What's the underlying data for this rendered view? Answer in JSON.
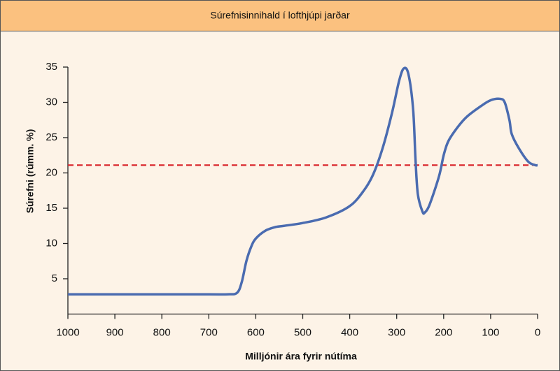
{
  "chart_data": {
    "type": "line",
    "title": "Súrefnisinnihald í lofthjúpi jarðar",
    "x_label": "Milljónir ára fyrir nútíma",
    "y_label": "Súrefni (rúmm. %)",
    "x": [
      1000,
      900,
      800,
      700,
      660,
      640,
      630,
      620,
      610,
      600,
      580,
      560,
      540,
      500,
      450,
      400,
      370,
      350,
      330,
      310,
      295,
      285,
      275,
      265,
      260,
      255,
      245,
      240,
      230,
      210,
      200,
      190,
      170,
      150,
      120,
      100,
      80,
      70,
      60,
      55,
      40,
      20,
      5,
      0
    ],
    "series": [
      {
        "color": "#4a6bb0",
        "values": [
          2.8,
          2.8,
          2.8,
          2.8,
          2.8,
          3,
          4.5,
          7.5,
          9.5,
          10.7,
          11.8,
          12.3,
          12.5,
          12.9,
          13.7,
          15.3,
          17.5,
          19.8,
          23.5,
          28.5,
          33,
          34.8,
          34,
          29,
          22,
          17,
          14.5,
          14.4,
          15.5,
          19.5,
          22.5,
          24.5,
          26.5,
          28,
          29.5,
          30.3,
          30.5,
          30,
          27.5,
          25.5,
          23.5,
          21.6,
          21.1,
          21.1
        ]
      }
    ],
    "reference_line": {
      "value": 21.1,
      "color": "#d9262c",
      "dashed": true
    },
    "xlim": [
      1000,
      0
    ],
    "xticks": [
      1000,
      900,
      800,
      700,
      600,
      500,
      400,
      300,
      200,
      100,
      0
    ],
    "ylim": [
      0,
      35
    ],
    "yticks": [
      5,
      10,
      15,
      20,
      25,
      30,
      35
    ],
    "grid": false
  }
}
